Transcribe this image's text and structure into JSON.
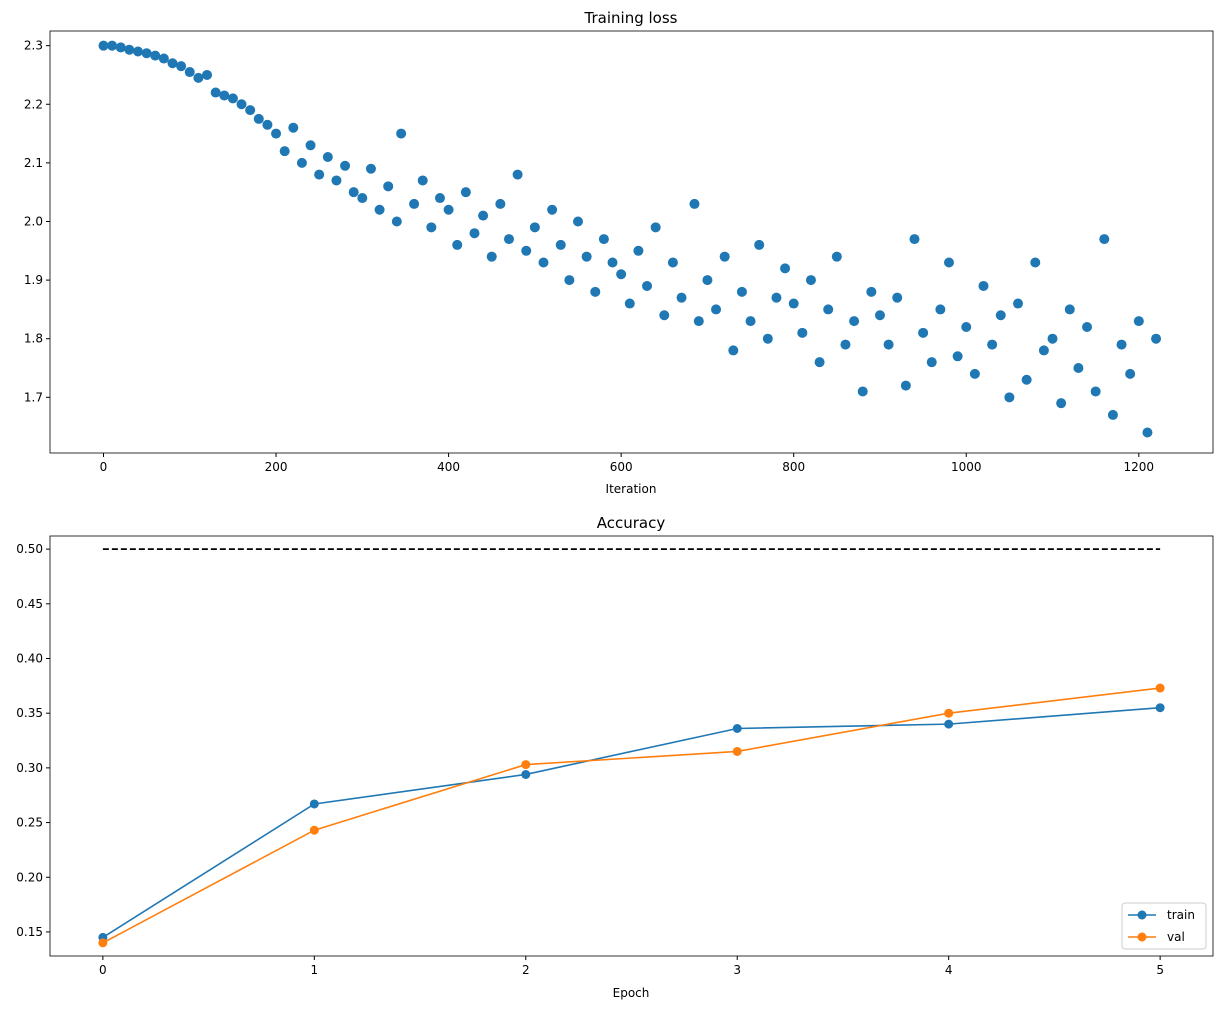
{
  "chart_data": [
    {
      "type": "scatter",
      "title": "Training loss",
      "xlabel": "Iteration",
      "ylabel": "",
      "xlim": [
        -62,
        1286
      ],
      "ylim": [
        1.605,
        2.325
      ],
      "xticks": [
        0,
        200,
        400,
        600,
        800,
        1000,
        1200
      ],
      "yticks": [
        1.7,
        1.8,
        1.9,
        2.0,
        2.1,
        2.2,
        2.3
      ],
      "grid": false,
      "color": "#1f77b4",
      "points": [
        [
          0,
          2.3
        ],
        [
          10,
          2.3
        ],
        [
          20,
          2.297
        ],
        [
          30,
          2.293
        ],
        [
          40,
          2.29
        ],
        [
          50,
          2.287
        ],
        [
          60,
          2.283
        ],
        [
          70,
          2.278
        ],
        [
          80,
          2.27
        ],
        [
          90,
          2.265
        ],
        [
          100,
          2.255
        ],
        [
          110,
          2.245
        ],
        [
          120,
          2.25
        ],
        [
          130,
          2.22
        ],
        [
          140,
          2.215
        ],
        [
          150,
          2.21
        ],
        [
          160,
          2.2
        ],
        [
          170,
          2.19
        ],
        [
          180,
          2.175
        ],
        [
          190,
          2.165
        ],
        [
          200,
          2.15
        ],
        [
          210,
          2.12
        ],
        [
          220,
          2.16
        ],
        [
          230,
          2.1
        ],
        [
          240,
          2.13
        ],
        [
          250,
          2.08
        ],
        [
          260,
          2.11
        ],
        [
          270,
          2.07
        ],
        [
          280,
          2.095
        ],
        [
          290,
          2.05
        ],
        [
          300,
          2.04
        ],
        [
          310,
          2.09
        ],
        [
          320,
          2.02
        ],
        [
          330,
          2.06
        ],
        [
          340,
          2.0
        ],
        [
          345,
          2.15
        ],
        [
          360,
          2.03
        ],
        [
          370,
          2.07
        ],
        [
          380,
          1.99
        ],
        [
          390,
          2.04
        ],
        [
          400,
          2.02
        ],
        [
          410,
          1.96
        ],
        [
          420,
          2.05
        ],
        [
          430,
          1.98
        ],
        [
          440,
          2.01
        ],
        [
          450,
          1.94
        ],
        [
          460,
          2.03
        ],
        [
          470,
          1.97
        ],
        [
          480,
          2.08
        ],
        [
          490,
          1.95
        ],
        [
          500,
          1.99
        ],
        [
          510,
          1.93
        ],
        [
          520,
          2.02
        ],
        [
          530,
          1.96
        ],
        [
          540,
          1.9
        ],
        [
          550,
          2.0
        ],
        [
          560,
          1.94
        ],
        [
          570,
          1.88
        ],
        [
          580,
          1.97
        ],
        [
          590,
          1.93
        ],
        [
          600,
          1.91
        ],
        [
          610,
          1.86
        ],
        [
          620,
          1.95
        ],
        [
          630,
          1.89
        ],
        [
          640,
          1.99
        ],
        [
          650,
          1.84
        ],
        [
          660,
          1.93
        ],
        [
          670,
          1.87
        ],
        [
          685,
          2.03
        ],
        [
          690,
          1.83
        ],
        [
          700,
          1.9
        ],
        [
          710,
          1.85
        ],
        [
          720,
          1.94
        ],
        [
          730,
          1.78
        ],
        [
          740,
          1.88
        ],
        [
          750,
          1.83
        ],
        [
          760,
          1.96
        ],
        [
          770,
          1.8
        ],
        [
          780,
          1.87
        ],
        [
          790,
          1.92
        ],
        [
          800,
          1.86
        ],
        [
          810,
          1.81
        ],
        [
          820,
          1.9
        ],
        [
          830,
          1.76
        ],
        [
          840,
          1.85
        ],
        [
          850,
          1.94
        ],
        [
          860,
          1.79
        ],
        [
          870,
          1.83
        ],
        [
          880,
          1.71
        ],
        [
          890,
          1.88
        ],
        [
          900,
          1.84
        ],
        [
          910,
          1.79
        ],
        [
          920,
          1.87
        ],
        [
          930,
          1.72
        ],
        [
          940,
          1.97
        ],
        [
          950,
          1.81
        ],
        [
          960,
          1.76
        ],
        [
          970,
          1.85
        ],
        [
          980,
          1.93
        ],
        [
          990,
          1.77
        ],
        [
          1000,
          1.82
        ],
        [
          1010,
          1.74
        ],
        [
          1020,
          1.89
        ],
        [
          1030,
          1.79
        ],
        [
          1040,
          1.84
        ],
        [
          1050,
          1.7
        ],
        [
          1060,
          1.86
        ],
        [
          1070,
          1.73
        ],
        [
          1080,
          1.93
        ],
        [
          1090,
          1.78
        ],
        [
          1100,
          1.8
        ],
        [
          1110,
          1.69
        ],
        [
          1120,
          1.85
        ],
        [
          1130,
          1.75
        ],
        [
          1140,
          1.82
        ],
        [
          1150,
          1.71
        ],
        [
          1160,
          1.97
        ],
        [
          1170,
          1.67
        ],
        [
          1180,
          1.79
        ],
        [
          1190,
          1.74
        ],
        [
          1200,
          1.83
        ],
        [
          1210,
          1.64
        ],
        [
          1220,
          1.8
        ]
      ]
    },
    {
      "type": "line",
      "title": "Accuracy",
      "xlabel": "Epoch",
      "ylabel": "",
      "xlim": [
        -0.25,
        5.25
      ],
      "ylim": [
        0.128,
        0.512
      ],
      "xticks": [
        0,
        1,
        2,
        3,
        4,
        5
      ],
      "yticks": [
        "0.15",
        "0.20",
        "0.25",
        "0.30",
        "0.35",
        "0.40",
        "0.45",
        "0.50"
      ],
      "grid": false,
      "legend_position": "lower-right",
      "x": [
        0,
        1,
        2,
        3,
        4,
        5
      ],
      "series": [
        {
          "name": "train",
          "color": "#1f77b4",
          "values": [
            0.145,
            0.267,
            0.294,
            0.336,
            0.34,
            0.355
          ]
        },
        {
          "name": "val",
          "color": "#ff7f0e",
          "values": [
            0.14,
            0.243,
            0.303,
            0.315,
            0.35,
            0.373
          ]
        }
      ],
      "reference_line": {
        "y": 0.5,
        "style": "dashed",
        "color": "#000000",
        "x_range": [
          0,
          5
        ]
      }
    }
  ]
}
